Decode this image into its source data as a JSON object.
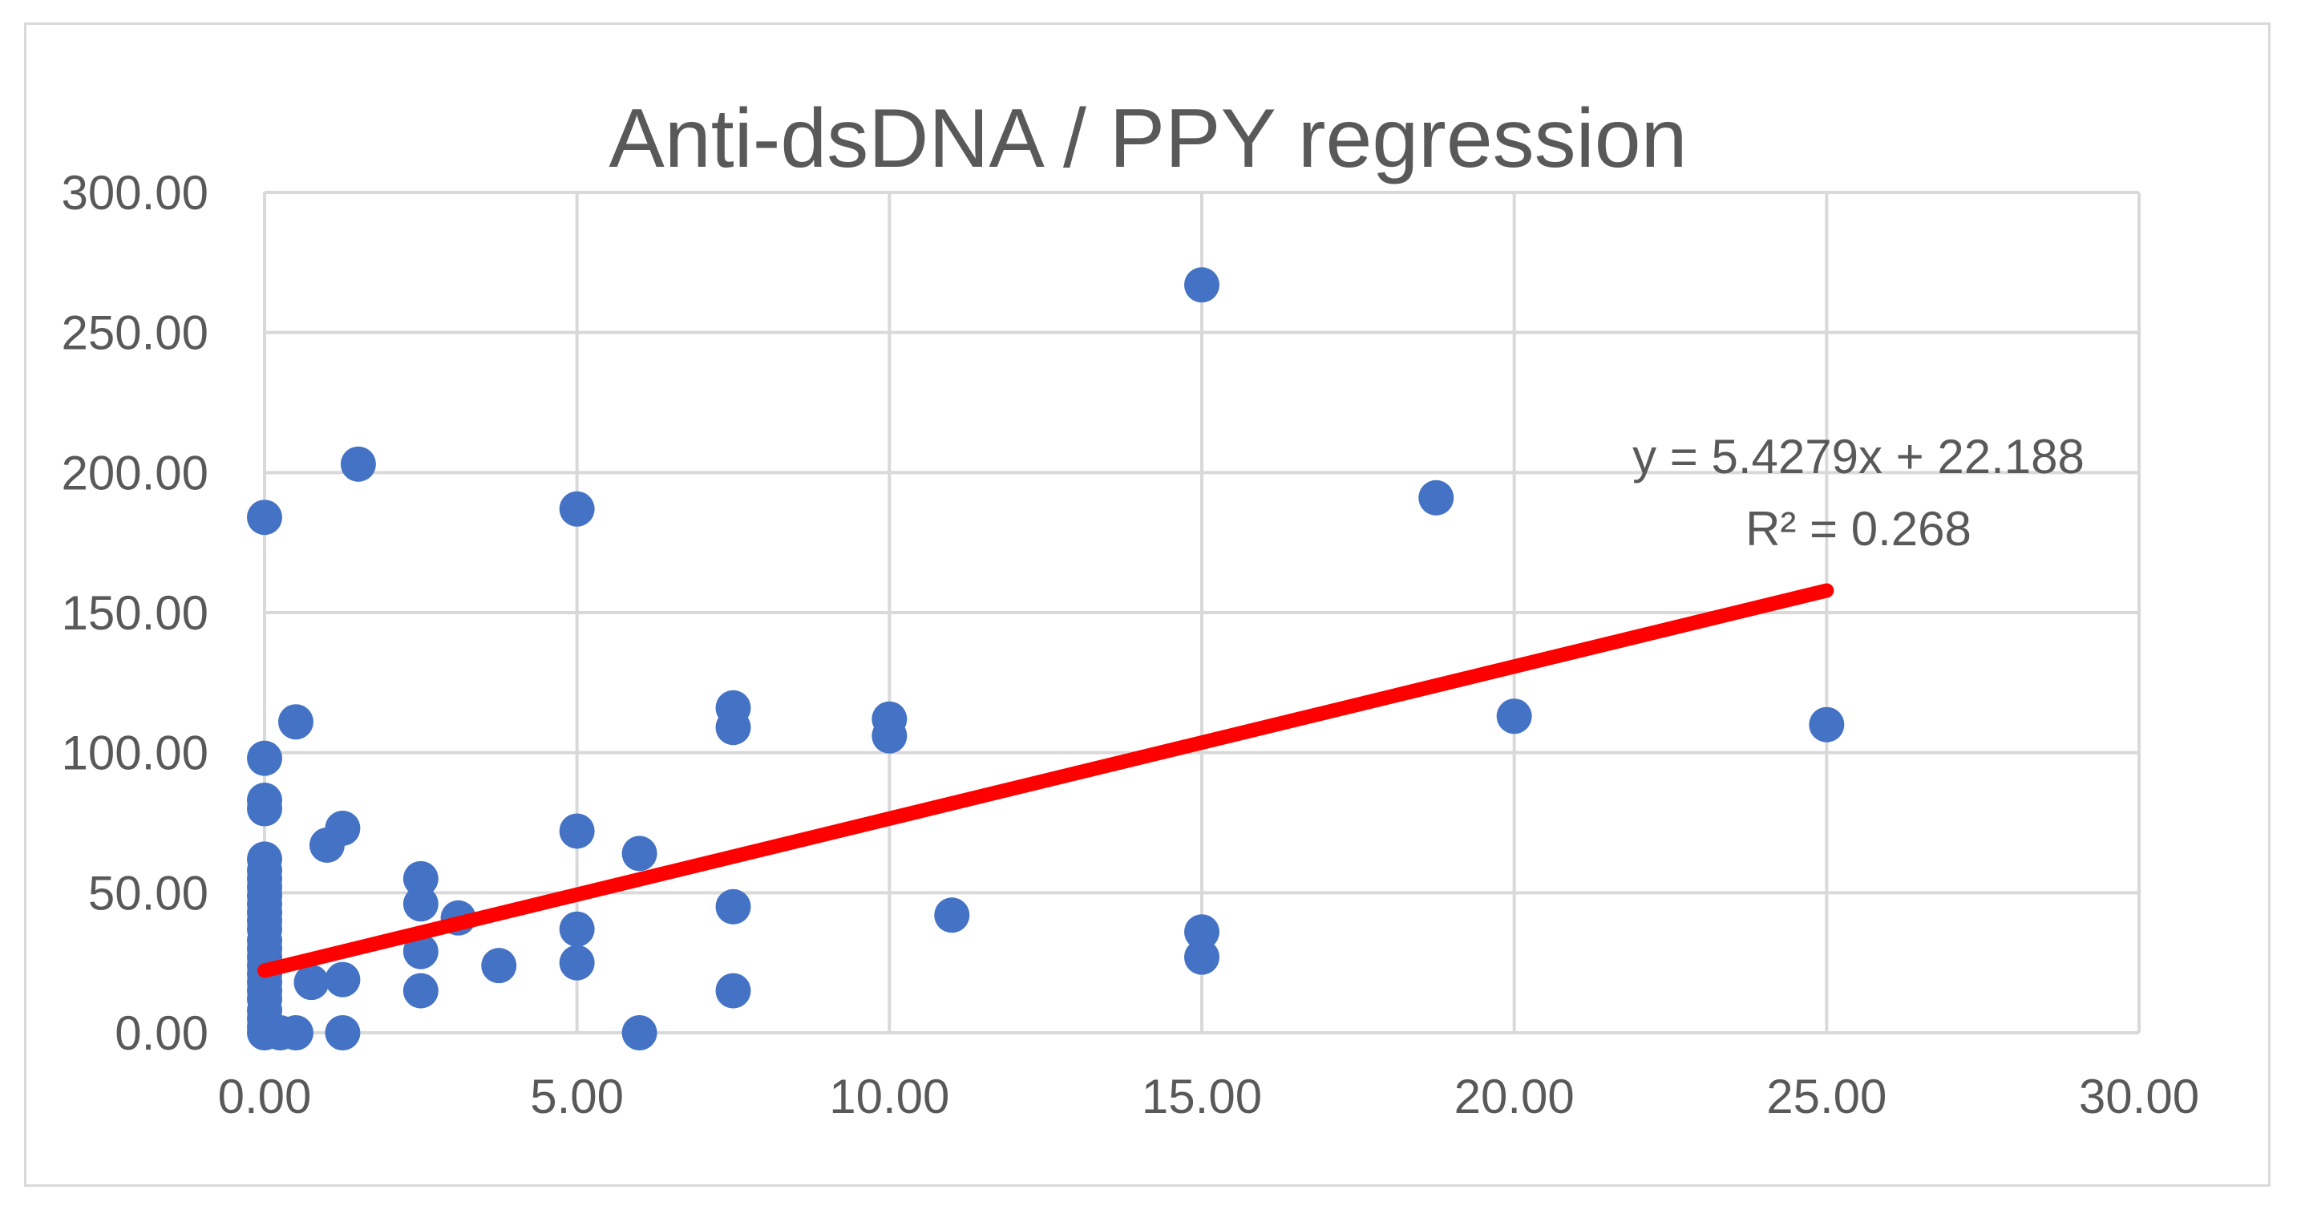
{
  "chart_data": {
    "type": "scatter",
    "title": "Anti-dsDNA / PPY regression",
    "xlabel": "",
    "ylabel": "",
    "xlim": [
      0,
      30
    ],
    "ylim": [
      0,
      300
    ],
    "x_ticks": [
      0,
      5,
      10,
      15,
      20,
      25,
      30
    ],
    "y_ticks": [
      0,
      50,
      100,
      150,
      200,
      250,
      300
    ],
    "x_tick_labels": [
      "0.00",
      "5.00",
      "10.00",
      "15.00",
      "20.00",
      "25.00",
      "30.00"
    ],
    "y_tick_labels": [
      "0.00",
      "50.00",
      "100.00",
      "150.00",
      "200.00",
      "250.00",
      "300.00"
    ],
    "grid": true,
    "colors": {
      "points": "#4472C4",
      "trendline": "#FF0000",
      "grid": "#d9d9d9",
      "text": "#595959"
    },
    "series": [
      {
        "name": "Anti-dsDNA / PPY",
        "points": [
          {
            "x": 0,
            "y": 184
          },
          {
            "x": 0,
            "y": 98
          },
          {
            "x": 0,
            "y": 83
          },
          {
            "x": 0,
            "y": 80
          },
          {
            "x": 0,
            "y": 62
          },
          {
            "x": 0,
            "y": 58
          },
          {
            "x": 0,
            "y": 55
          },
          {
            "x": 0,
            "y": 52
          },
          {
            "x": 0,
            "y": 49
          },
          {
            "x": 0,
            "y": 46
          },
          {
            "x": 0,
            "y": 43
          },
          {
            "x": 0,
            "y": 40
          },
          {
            "x": 0,
            "y": 37
          },
          {
            "x": 0,
            "y": 33
          },
          {
            "x": 0,
            "y": 30
          },
          {
            "x": 0,
            "y": 27
          },
          {
            "x": 0,
            "y": 24
          },
          {
            "x": 0,
            "y": 21
          },
          {
            "x": 0,
            "y": 18
          },
          {
            "x": 0,
            "y": 15
          },
          {
            "x": 0,
            "y": 12
          },
          {
            "x": 0,
            "y": 8
          },
          {
            "x": 0,
            "y": 5
          },
          {
            "x": 0,
            "y": 2
          },
          {
            "x": 0,
            "y": 0
          },
          {
            "x": 0.25,
            "y": 0
          },
          {
            "x": 0.5,
            "y": 0
          },
          {
            "x": 0.5,
            "y": 111
          },
          {
            "x": 0.75,
            "y": 18
          },
          {
            "x": 1,
            "y": 67
          },
          {
            "x": 1.25,
            "y": 73
          },
          {
            "x": 1.25,
            "y": 19
          },
          {
            "x": 1.25,
            "y": 0
          },
          {
            "x": 1.5,
            "y": 203
          },
          {
            "x": 2.5,
            "y": 55
          },
          {
            "x": 2.5,
            "y": 46
          },
          {
            "x": 2.5,
            "y": 29
          },
          {
            "x": 2.5,
            "y": 15
          },
          {
            "x": 3.1,
            "y": 41
          },
          {
            "x": 3.75,
            "y": 24
          },
          {
            "x": 5,
            "y": 187
          },
          {
            "x": 5,
            "y": 72
          },
          {
            "x": 5,
            "y": 37
          },
          {
            "x": 5,
            "y": 25
          },
          {
            "x": 6,
            "y": 64
          },
          {
            "x": 6,
            "y": 0
          },
          {
            "x": 7.5,
            "y": 116
          },
          {
            "x": 7.5,
            "y": 109
          },
          {
            "x": 7.5,
            "y": 45
          },
          {
            "x": 7.5,
            "y": 15
          },
          {
            "x": 10,
            "y": 112
          },
          {
            "x": 10,
            "y": 106
          },
          {
            "x": 11,
            "y": 42
          },
          {
            "x": 15,
            "y": 267
          },
          {
            "x": 15,
            "y": 36
          },
          {
            "x": 15,
            "y": 27
          },
          {
            "x": 18.75,
            "y": 191
          },
          {
            "x": 20,
            "y": 113
          },
          {
            "x": 25,
            "y": 110
          }
        ]
      }
    ],
    "trendline": {
      "type": "linear",
      "slope": 5.4279,
      "intercept": 22.188,
      "x_range": [
        0,
        25
      ],
      "equation": "y = 5.4279x + 22.188",
      "r_squared": "R² = 0.268"
    }
  }
}
